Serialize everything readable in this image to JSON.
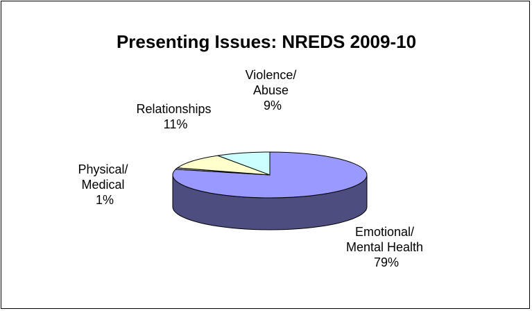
{
  "chart_data": {
    "type": "pie",
    "title": "Presenting Issues: NREDS 2009-10",
    "style": "3d",
    "slices": [
      {
        "key": "emotional",
        "label_lines": [
          "Emotional/",
          "Mental Health"
        ],
        "percent_label": "79%",
        "value": 79,
        "color": "#9999ff"
      },
      {
        "key": "physical",
        "label_lines": [
          "Physical/",
          "Medical"
        ],
        "percent_label": "1%",
        "value": 1,
        "color": "#cccccc"
      },
      {
        "key": "relationships",
        "label_lines": [
          "Relationships"
        ],
        "percent_label": "11%",
        "value": 11,
        "color": "#ffffcc"
      },
      {
        "key": "violence",
        "label_lines": [
          "Violence/",
          "Abuse"
        ],
        "percent_label": "9%",
        "value": 9,
        "color": "#ccffff"
      }
    ]
  }
}
